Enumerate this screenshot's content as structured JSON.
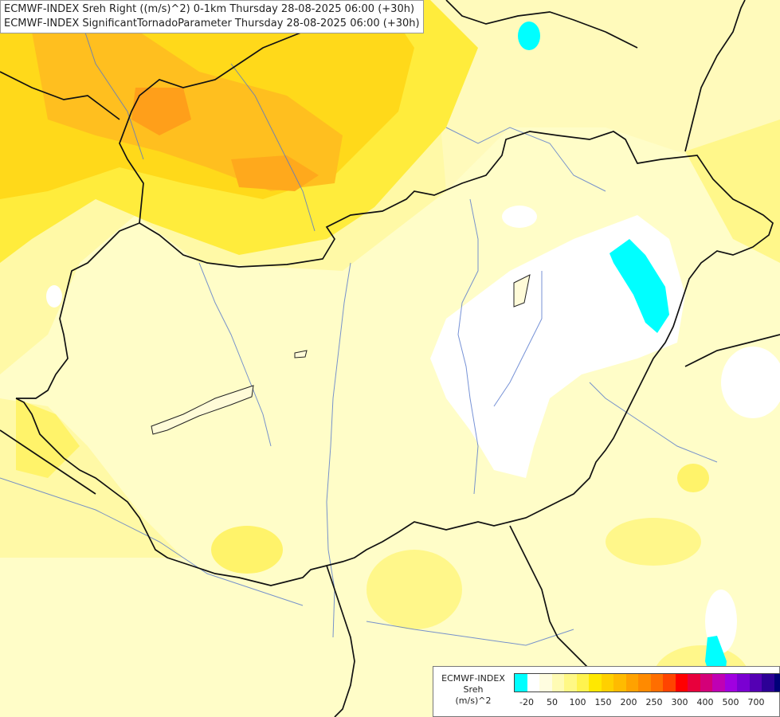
{
  "map": {
    "title_line1": "ECMWF-INDEX Sreh Right ((m/s)^2) 0-1km Thursday 28-08-2025 06:00 (+30h)",
    "title_line2": "ECMWF-INDEX SignificantTornadoParameter Thursday 28-08-2025 06:00 (+30h)"
  },
  "legend": {
    "line1": "ECMWF-INDEX",
    "line2": "Sreh",
    "line3": "(m/s)^2",
    "colors": [
      "#00ffff",
      "#ffffff",
      "#fffde0",
      "#fffbb4",
      "#fff885",
      "#fff34f",
      "#ffe800",
      "#ffd000",
      "#ffbb00",
      "#ffa200",
      "#ff8a00",
      "#ff6e00",
      "#ff4400",
      "#ff0000",
      "#e8003c",
      "#d40078",
      "#c000b4",
      "#a000e0",
      "#7a00d2",
      "#5400b4",
      "#2c0096",
      "#000078"
    ],
    "labels": [
      "-20",
      "50",
      "100",
      "150",
      "200",
      "250",
      "300",
      "400",
      "500",
      "700"
    ]
  }
}
